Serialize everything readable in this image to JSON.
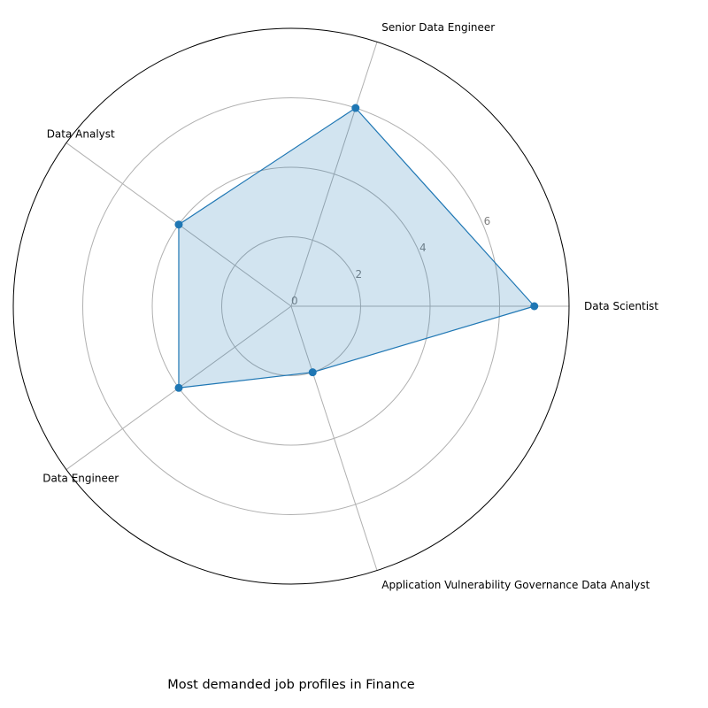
{
  "chart_data": {
    "type": "radar",
    "title": "Most demanded job profiles in Finance",
    "categories": [
      "Data Scientist",
      "Senior Data Engineer",
      "Data Analyst",
      "Data Engineer",
      "Application Vulnerability Governance Data Analyst"
    ],
    "values": [
      7,
      6,
      4,
      4,
      2
    ],
    "r_ticks": [
      0,
      2,
      4,
      6
    ],
    "rlim": [
      0,
      8
    ],
    "grid": true,
    "colors": {
      "line": "#1f77b4",
      "fill": "#1f77b4",
      "grid": "#b0b0b0",
      "tick_label": "#808080",
      "frame": "#000000"
    }
  }
}
